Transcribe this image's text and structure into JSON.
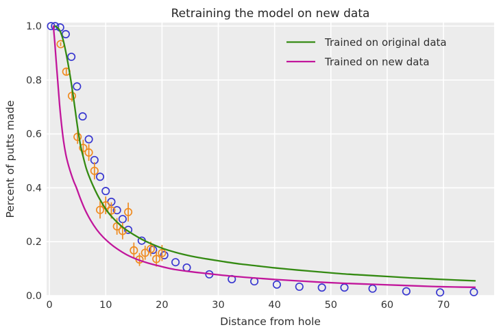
{
  "figure": {
    "title": "Retraining the model on new data",
    "xlabel": "Distance from hole",
    "ylabel": "Percent of putts made"
  },
  "legend": {
    "items": [
      {
        "label": "Trained on original data",
        "color": "#348a12"
      },
      {
        "label": "Trained on new data",
        "color": "#c1169b"
      }
    ]
  },
  "style": {
    "plot_bg": "#ececec",
    "grid_color": "#ffffff",
    "title_color": "#262626",
    "tick_color": "#333333",
    "new_data_color": "#3837d0",
    "original_data_color": "#ef8b20",
    "curve_original_color": "#348a12",
    "curve_new_color": "#c1169b"
  },
  "chart_data": {
    "type": "scatter",
    "title": "Retraining the model on new data",
    "xlabel": "Distance from hole",
    "ylabel": "Percent of putts made",
    "xlim": [
      -0.5,
      79.0
    ],
    "ylim": [
      0,
      1.013
    ],
    "grid": true,
    "legend_position": "upper right",
    "xticks": [
      0,
      10,
      20,
      30,
      40,
      50,
      60,
      70
    ],
    "yticks": [
      {
        "value": 0.0,
        "label": "0.0"
      },
      {
        "value": 0.2,
        "label": "0.2"
      },
      {
        "value": 0.4,
        "label": "0.4"
      },
      {
        "value": 0.6,
        "label": "0.6"
      },
      {
        "value": 0.8,
        "label": "0.8"
      },
      {
        "value": 1.0,
        "label": "1.0"
      }
    ],
    "series": [
      {
        "name": "new data points",
        "type": "scatter",
        "marker": "open-circle",
        "color_key": "new_data_color",
        "x": [
          0.3,
          1.0,
          1.9,
          2.9,
          3.9,
          4.9,
          5.9,
          7.0,
          8.0,
          9.0,
          10.0,
          11.0,
          12.0,
          13.0,
          14.0,
          16.4,
          18.4,
          20.4,
          22.4,
          24.4,
          28.4,
          32.4,
          36.4,
          40.4,
          44.4,
          48.4,
          52.4,
          57.4,
          63.4,
          69.4,
          75.4
        ],
        "y": [
          1.0,
          1.0,
          0.995,
          0.97,
          0.886,
          0.776,
          0.665,
          0.58,
          0.503,
          0.441,
          0.388,
          0.348,
          0.317,
          0.284,
          0.244,
          0.204,
          0.17,
          0.15,
          0.124,
          0.104,
          0.079,
          0.061,
          0.053,
          0.041,
          0.033,
          0.03,
          0.03,
          0.026,
          0.016,
          0.012,
          0.013
        ]
      },
      {
        "name": "original data points with error bars",
        "type": "scatter",
        "marker": "open-circle",
        "color_key": "original_data_color",
        "x": [
          2,
          3,
          4,
          5,
          6,
          7,
          8,
          9,
          10,
          11,
          12,
          13,
          14,
          15,
          16,
          17,
          18,
          19,
          20
        ],
        "y": [
          0.933,
          0.831,
          0.741,
          0.589,
          0.548,
          0.531,
          0.463,
          0.318,
          0.335,
          0.316,
          0.257,
          0.24,
          0.31,
          0.168,
          0.134,
          0.159,
          0.173,
          0.136,
          0.158
        ],
        "yerr": [
          0.007,
          0.014,
          0.021,
          0.026,
          0.03,
          0.031,
          0.032,
          0.032,
          0.033,
          0.03,
          0.031,
          0.031,
          0.035,
          0.029,
          0.024,
          0.026,
          0.027,
          0.028,
          0.03
        ]
      },
      {
        "name": "Trained on original data",
        "type": "line",
        "color_key": "curve_original_color",
        "x": [
          1.0,
          1.4,
          1.8,
          2.2,
          2.6,
          3.0,
          3.4,
          3.8,
          4.2,
          4.6,
          5.0,
          5.5,
          6.0,
          6.5,
          7.0,
          7.7,
          8.5,
          9.3,
          10.2,
          11.2,
          12.3,
          13.5,
          15,
          16.5,
          18,
          20,
          22,
          24,
          26,
          28,
          31,
          34,
          37,
          40,
          44,
          48,
          52,
          56,
          60,
          64,
          68,
          72,
          75.6
        ],
        "y": [
          1.0,
          0.995,
          0.985,
          0.965,
          0.935,
          0.895,
          0.85,
          0.8,
          0.745,
          0.685,
          0.625,
          0.56,
          0.515,
          0.475,
          0.445,
          0.41,
          0.375,
          0.345,
          0.315,
          0.29,
          0.267,
          0.246,
          0.226,
          0.208,
          0.193,
          0.176,
          0.163,
          0.152,
          0.143,
          0.136,
          0.126,
          0.117,
          0.11,
          0.103,
          0.095,
          0.088,
          0.081,
          0.076,
          0.071,
          0.066,
          0.062,
          0.058,
          0.055
        ]
      },
      {
        "name": "Trained on new data",
        "type": "line",
        "color_key": "curve_new_color",
        "x": [
          0.7,
          0.95,
          1.2,
          1.5,
          1.8,
          2.1,
          2.5,
          2.9,
          3.3,
          3.8,
          4.3,
          4.8,
          5.5,
          6.3,
          7.3,
          8.4,
          9.5,
          10.8,
          12,
          13.7,
          15.5,
          17.5,
          19.5,
          22,
          25,
          28,
          32,
          36,
          40,
          44,
          48,
          52,
          56,
          60,
          64,
          68,
          72,
          75.6
        ],
        "y": [
          1.0,
          0.94,
          0.87,
          0.79,
          0.71,
          0.645,
          0.575,
          0.525,
          0.49,
          0.455,
          0.425,
          0.4,
          0.36,
          0.32,
          0.28,
          0.245,
          0.218,
          0.193,
          0.174,
          0.152,
          0.135,
          0.121,
          0.11,
          0.098,
          0.089,
          0.082,
          0.073,
          0.066,
          0.06,
          0.055,
          0.05,
          0.046,
          0.043,
          0.04,
          0.037,
          0.034,
          0.032,
          0.031
        ]
      }
    ]
  }
}
